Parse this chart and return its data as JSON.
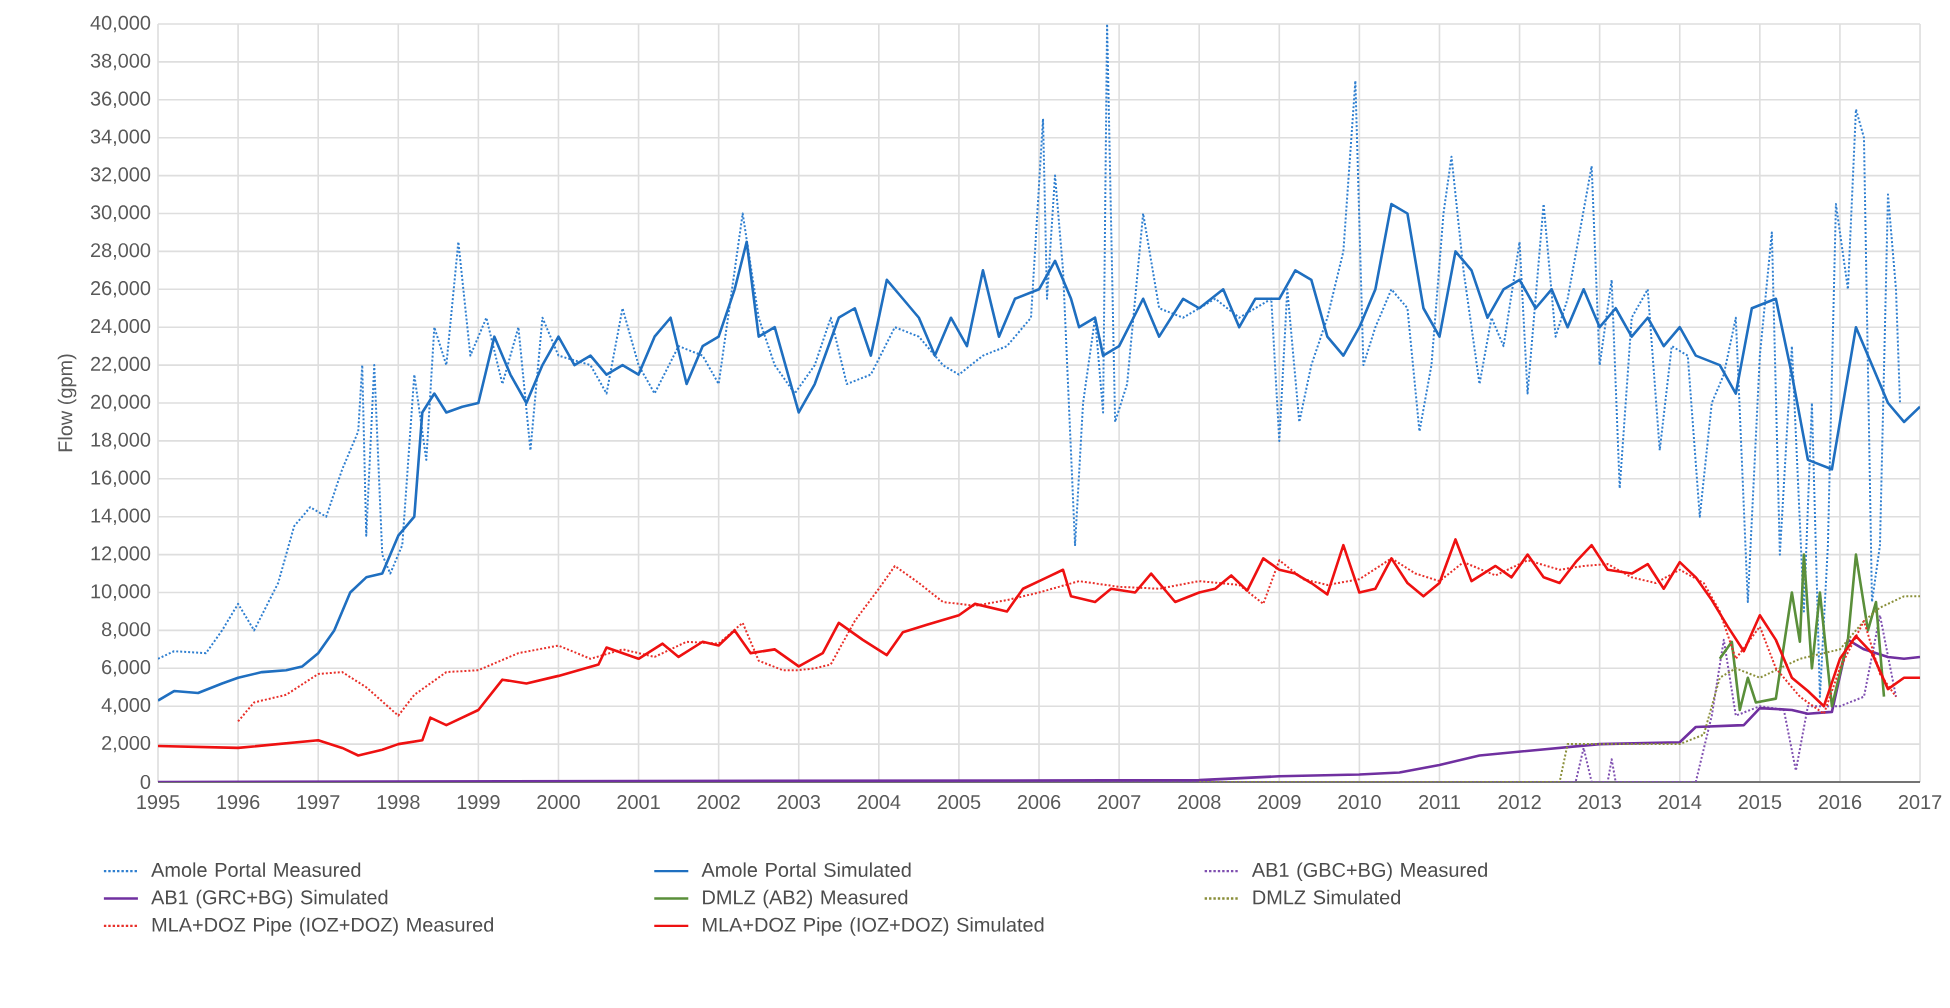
{
  "chart_data": {
    "type": "line",
    "ylabel": "Flow (gpm)",
    "grid": true,
    "legend": "bottom",
    "xlim": [
      1995,
      2017
    ],
    "xticks": [
      1995,
      1996,
      1997,
      1998,
      1999,
      2000,
      2001,
      2002,
      2003,
      2004,
      2005,
      2006,
      2007,
      2008,
      2009,
      2010,
      2011,
      2012,
      2013,
      2014,
      2015,
      2016,
      2017
    ],
    "ylim": [
      0,
      40000
    ],
    "yticks": [
      0,
      {
        "value": 2000,
        "label": "2,000"
      },
      {
        "value": 4000,
        "label": "4,000"
      },
      {
        "value": 6000,
        "label": "6,000"
      },
      {
        "value": 8000,
        "label": "8,000"
      },
      {
        "value": 10000,
        "label": "10,000"
      },
      {
        "value": 12000,
        "label": "12,000"
      },
      {
        "value": 14000,
        "label": "14,000"
      },
      {
        "value": 16000,
        "label": "16,000"
      },
      {
        "value": 18000,
        "label": "18,000"
      },
      {
        "value": 20000,
        "label": "20,000"
      },
      {
        "value": 22000,
        "label": "22,000"
      },
      {
        "value": 24000,
        "label": "24,000"
      },
      {
        "value": 26000,
        "label": "26,000"
      },
      {
        "value": 28000,
        "label": "28,000"
      },
      {
        "value": 30000,
        "label": "30,000"
      },
      {
        "value": 32000,
        "label": "32,000"
      },
      {
        "value": 34000,
        "label": "34,000"
      },
      {
        "value": 36000,
        "label": "36,000"
      },
      {
        "value": 38000,
        "label": "38,000"
      },
      {
        "value": 40000,
        "label": "40,000"
      }
    ],
    "series": [
      {
        "name": "Amole Portal Measured",
        "color": "#2f7fd0",
        "line_style": "dotted",
        "x": [
          1995.0,
          1995.2,
          1995.6,
          1995.8,
          1996.0,
          1996.2,
          1996.5,
          1996.7,
          1996.9,
          1997.1,
          1997.3,
          1997.5,
          1997.55,
          1997.6,
          1997.7,
          1997.8,
          1997.9,
          1998.05,
          1998.2,
          1998.35,
          1998.45,
          1998.6,
          1998.75,
          1998.9,
          1999.1,
          1999.3,
          1999.5,
          1999.65,
          1999.8,
          2000.0,
          2000.4,
          2000.6,
          2000.8,
          2001.0,
          2001.2,
          2001.5,
          2001.8,
          2002.0,
          2002.3,
          2002.5,
          2002.7,
          2002.95,
          2003.2,
          2003.4,
          2003.6,
          2003.9,
          2004.2,
          2004.5,
          2004.8,
          2005.0,
          2005.3,
          2005.6,
          2005.9,
          2006.05,
          2006.1,
          2006.2,
          2006.3,
          2006.45,
          2006.55,
          2006.7,
          2006.8,
          2006.85,
          2006.95,
          2007.1,
          2007.3,
          2007.5,
          2007.8,
          2008.2,
          2008.5,
          2008.9,
          2009.0,
          2009.1,
          2009.25,
          2009.4,
          2009.6,
          2009.8,
          2009.95,
          2010.05,
          2010.2,
          2010.4,
          2010.6,
          2010.75,
          2010.9,
          2011.05,
          2011.15,
          2011.3,
          2011.5,
          2011.65,
          2011.8,
          2012.0,
          2012.1,
          2012.3,
          2012.45,
          2012.6,
          2012.9,
          2013.0,
          2013.15,
          2013.25,
          2013.4,
          2013.6,
          2013.75,
          2013.9,
          2014.1,
          2014.25,
          2014.4,
          2014.55,
          2014.7,
          2014.85,
          2015.0,
          2015.15,
          2015.25,
          2015.4,
          2015.55,
          2015.65,
          2015.75,
          2015.85,
          2015.95,
          2016.1,
          2016.2,
          2016.3,
          2016.4,
          2016.5,
          2016.6,
          2016.7,
          2016.75
        ],
        "values": [
          6500,
          6900,
          6800,
          8000,
          9400,
          8000,
          10500,
          13500,
          14500,
          14000,
          16500,
          18500,
          22000,
          13000,
          22000,
          12000,
          11000,
          12500,
          21500,
          17000,
          24000,
          22000,
          28500,
          22500,
          24500,
          21000,
          24000,
          17500,
          24500,
          22500,
          22000,
          20500,
          25000,
          22000,
          20500,
          23000,
          22500,
          21000,
          30000,
          24500,
          22000,
          20500,
          22000,
          24500,
          21000,
          21500,
          24000,
          23500,
          22000,
          21500,
          22500,
          23000,
          24500,
          35000,
          25500,
          32000,
          27000,
          12500,
          20000,
          24500,
          19500,
          40000,
          19000,
          21000,
          30000,
          25000,
          24500,
          25500,
          24500,
          25500,
          18000,
          26000,
          19000,
          22000,
          24500,
          28000,
          37000,
          22000,
          24000,
          26000,
          25000,
          18500,
          22000,
          30000,
          33000,
          27000,
          21000,
          24500,
          23000,
          28500,
          20500,
          30500,
          23500,
          25500,
          32500,
          22000,
          26500,
          15500,
          24500,
          26000,
          17500,
          23000,
          22500,
          14000,
          20000,
          21500,
          24500,
          9500,
          22500,
          29000,
          12000,
          23000,
          9000,
          20000,
          4500,
          12500,
          30500,
          26000,
          35500,
          34000,
          9500,
          12500,
          31000,
          26000,
          20000
        ]
      },
      {
        "name": "Amole Portal Simulated",
        "color": "#1f6fc0",
        "line_style": "solid",
        "x": [
          1995.0,
          1995.2,
          1995.5,
          1995.8,
          1996.0,
          1996.3,
          1996.6,
          1996.8,
          1997.0,
          1997.2,
          1997.4,
          1997.6,
          1997.8,
          1998.0,
          1998.2,
          1998.3,
          1998.45,
          1998.6,
          1998.8,
          1999.0,
          1999.2,
          1999.4,
          1999.6,
          1999.8,
          2000.0,
          2000.2,
          2000.4,
          2000.6,
          2000.8,
          2001.0,
          2001.2,
          2001.4,
          2001.6,
          2001.8,
          2002.0,
          2002.2,
          2002.35,
          2002.5,
          2002.7,
          2003.0,
          2003.2,
          2003.5,
          2003.7,
          2003.9,
          2004.1,
          2004.3,
          2004.5,
          2004.7,
          2004.9,
          2005.1,
          2005.3,
          2005.5,
          2005.7,
          2006.0,
          2006.2,
          2006.4,
          2006.5,
          2006.7,
          2006.8,
          2007.0,
          2007.3,
          2007.5,
          2007.8,
          2008.0,
          2008.3,
          2008.5,
          2008.7,
          2009.0,
          2009.2,
          2009.4,
          2009.6,
          2009.8,
          2010.0,
          2010.2,
          2010.4,
          2010.6,
          2010.8,
          2011.0,
          2011.2,
          2011.4,
          2011.6,
          2011.8,
          2012.0,
          2012.2,
          2012.4,
          2012.6,
          2012.8,
          2013.0,
          2013.2,
          2013.4,
          2013.6,
          2013.8,
          2014.0,
          2014.2,
          2014.5,
          2014.7,
          2014.9,
          2015.2,
          2015.4,
          2015.6,
          2015.9,
          2016.0,
          2016.2,
          2016.4,
          2016.6,
          2016.8,
          2017.0
        ],
        "values": [
          4300,
          4800,
          4700,
          5200,
          5500,
          5800,
          5900,
          6100,
          6800,
          8000,
          10000,
          10800,
          11000,
          13000,
          14000,
          19500,
          20500,
          19500,
          19800,
          20000,
          23500,
          21500,
          20000,
          22000,
          23500,
          22000,
          22500,
          21500,
          22000,
          21500,
          23500,
          24500,
          21000,
          23000,
          23500,
          26000,
          28500,
          23500,
          24000,
          19500,
          21000,
          24500,
          25000,
          22500,
          26500,
          25500,
          24500,
          22500,
          24500,
          23000,
          27000,
          23500,
          25500,
          26000,
          27500,
          25500,
          24000,
          24500,
          22500,
          23000,
          25500,
          23500,
          25500,
          25000,
          26000,
          24000,
          25500,
          25500,
          27000,
          26500,
          23500,
          22500,
          24000,
          26000,
          30500,
          30000,
          25000,
          23500,
          28000,
          27000,
          24500,
          26000,
          26500,
          25000,
          26000,
          24000,
          26000,
          24000,
          25000,
          23500,
          24500,
          23000,
          24000,
          22500,
          22000,
          20500,
          25000,
          25500,
          21500,
          17000,
          16500,
          19000,
          24000,
          22000,
          20000,
          19000,
          19800
        ]
      },
      {
        "name": "AB1 (GBC+BG) Measured",
        "color": "#7f4fb0",
        "line_style": "dotted",
        "x": [
          1995.0,
          2012.7,
          2012.8,
          2012.9,
          2013.1,
          2013.15,
          2013.2,
          2014.2,
          2014.4,
          2014.55,
          2014.7,
          2015.0,
          2015.3,
          2015.45,
          2015.6,
          2016.0,
          2016.3,
          2016.5,
          2016.7
        ],
        "values": [
          0,
          0,
          1800,
          0,
          0,
          1200,
          0,
          0,
          3500,
          7500,
          3500,
          4000,
          3800,
          600,
          4000,
          4000,
          4500,
          8800,
          4500
        ]
      },
      {
        "name": "AB1 (GRC+BG) Simulated",
        "color": "#7030a0",
        "line_style": "solid",
        "x": [
          1995.0,
          2008.0,
          2009.0,
          2010.0,
          2010.5,
          2011.0,
          2011.5,
          2012.0,
          2012.5,
          2013.0,
          2014.0,
          2014.2,
          2014.8,
          2015.0,
          2015.4,
          2015.6,
          2015.9,
          2016.1,
          2016.3,
          2016.6,
          2016.8,
          2017.0
        ],
        "values": [
          0,
          100,
          300,
          400,
          500,
          900,
          1400,
          1600,
          1800,
          2000,
          2100,
          2900,
          3000,
          3900,
          3800,
          3600,
          3700,
          7500,
          7000,
          6600,
          6500,
          6600
        ]
      },
      {
        "name": "DMLZ (AB2) Measured",
        "color": "#5a8f3a",
        "line_style": "solid",
        "x": [
          2014.5,
          2014.65,
          2014.75,
          2014.85,
          2014.95,
          2015.2,
          2015.4,
          2015.5,
          2015.55,
          2015.65,
          2015.75,
          2015.9,
          2016.1,
          2016.2,
          2016.35,
          2016.45,
          2016.55
        ],
        "values": [
          6500,
          7400,
          3800,
          5500,
          4200,
          4400,
          10000,
          7400,
          12000,
          6000,
          10000,
          4000,
          7500,
          12000,
          8000,
          9500,
          4500
        ]
      },
      {
        "name": "DMLZ Simulated",
        "color": "#8a8f3a",
        "line_style": "dotted",
        "x": [
          2008.0,
          2012.5,
          2012.6,
          2014.0,
          2014.3,
          2014.5,
          2014.7,
          2015.0,
          2015.5,
          2016.0,
          2016.3,
          2016.5,
          2016.8,
          2017.0
        ],
        "values": [
          0,
          0,
          2000,
          2000,
          2500,
          5500,
          6000,
          5500,
          6500,
          7000,
          8500,
          9200,
          9800,
          9800
        ]
      },
      {
        "name": "MLA+DOZ Pipe (IOZ+DOZ) Measured",
        "color": "#e8302a",
        "line_style": "dotted",
        "x": [
          1996.0,
          1996.2,
          1996.6,
          1997.0,
          1997.3,
          1997.6,
          1998.0,
          1998.2,
          1998.6,
          1999.0,
          1999.5,
          2000.0,
          2000.4,
          2000.8,
          2001.2,
          2001.6,
          2002.0,
          2002.3,
          2002.5,
          2002.8,
          2003.0,
          2003.2,
          2003.4,
          2003.7,
          2004.0,
          2004.2,
          2004.5,
          2004.8,
          2005.2,
          2005.6,
          2006.0,
          2006.5,
          2007.0,
          2007.5,
          2008.0,
          2008.5,
          2008.8,
          2009.0,
          2009.3,
          2009.6,
          2010.0,
          2010.4,
          2010.7,
          2011.0,
          2011.3,
          2011.7,
          2012.1,
          2012.5,
          2012.8,
          2013.1,
          2013.4,
          2013.7,
          2014.0,
          2014.3,
          2014.5,
          2014.7,
          2015.0,
          2015.2,
          2015.5,
          2015.8,
          2016.0,
          2016.3,
          2016.5,
          2016.7
        ],
        "values": [
          3200,
          4200,
          4600,
          5700,
          5800,
          5000,
          3500,
          4600,
          5800,
          5900,
          6800,
          7200,
          6500,
          7000,
          6600,
          7400,
          7300,
          8400,
          6400,
          5900,
          5900,
          6000,
          6200,
          8500,
          10200,
          11400,
          10500,
          9500,
          9300,
          9600,
          10000,
          10600,
          10300,
          10200,
          10600,
          10400,
          9400,
          11700,
          10700,
          10400,
          10700,
          11800,
          11000,
          10600,
          11600,
          10900,
          11700,
          11200,
          11400,
          11500,
          10800,
          10500,
          11200,
          10500,
          9000,
          6500,
          8200,
          6000,
          4500,
          3600,
          6000,
          8500,
          5700,
          4500
        ]
      },
      {
        "name": "MLA+DOZ Pipe (IOZ+DOZ) Simulated",
        "color": "#ee1111",
        "line_style": "solid",
        "x": [
          1995.0,
          1996.0,
          1996.5,
          1997.0,
          1997.3,
          1997.5,
          1997.8,
          1998.0,
          1998.3,
          1998.4,
          1998.6,
          1999.0,
          1999.3,
          1999.6,
          2000.0,
          2000.5,
          2000.6,
          2001.0,
          2001.3,
          2001.5,
          2001.8,
          2002.0,
          2002.2,
          2002.4,
          2002.7,
          2003.0,
          2003.3,
          2003.5,
          2003.8,
          2004.1,
          2004.3,
          2004.6,
          2005.0,
          2005.2,
          2005.6,
          2005.8,
          2006.1,
          2006.3,
          2006.4,
          2006.7,
          2006.9,
          2007.2,
          2007.4,
          2007.7,
          2008.0,
          2008.2,
          2008.4,
          2008.6,
          2008.8,
          2009.0,
          2009.2,
          2009.4,
          2009.6,
          2009.8,
          2010.0,
          2010.2,
          2010.4,
          2010.6,
          2010.8,
          2011.0,
          2011.2,
          2011.4,
          2011.7,
          2011.9,
          2012.1,
          2012.3,
          2012.5,
          2012.7,
          2012.9,
          2013.1,
          2013.4,
          2013.6,
          2013.8,
          2014.0,
          2014.2,
          2014.4,
          2014.6,
          2014.8,
          2015.0,
          2015.2,
          2015.4,
          2015.6,
          2015.8,
          2016.0,
          2016.2,
          2016.4,
          2016.6,
          2016.8,
          2017.0
        ],
        "values": [
          1900,
          1800,
          2000,
          2200,
          1800,
          1400,
          1700,
          2000,
          2200,
          3400,
          3000,
          3800,
          5400,
          5200,
          5600,
          6200,
          7100,
          6500,
          7300,
          6600,
          7400,
          7200,
          8000,
          6800,
          7000,
          6100,
          6800,
          8400,
          7500,
          6700,
          7900,
          8300,
          8800,
          9400,
          9000,
          10200,
          10800,
          11200,
          9800,
          9500,
          10200,
          10000,
          11000,
          9500,
          10000,
          10200,
          10900,
          10100,
          11800,
          11200,
          11000,
          10500,
          9900,
          12500,
          10000,
          10200,
          11800,
          10500,
          9800,
          10500,
          12800,
          10600,
          11400,
          10800,
          12000,
          10800,
          10500,
          11600,
          12500,
          11200,
          11000,
          11500,
          10200,
          11600,
          10800,
          9600,
          8200,
          6900,
          8800,
          7500,
          5500,
          4800,
          4000,
          6500,
          7700,
          6800,
          4900,
          5500,
          5500
        ]
      }
    ]
  }
}
